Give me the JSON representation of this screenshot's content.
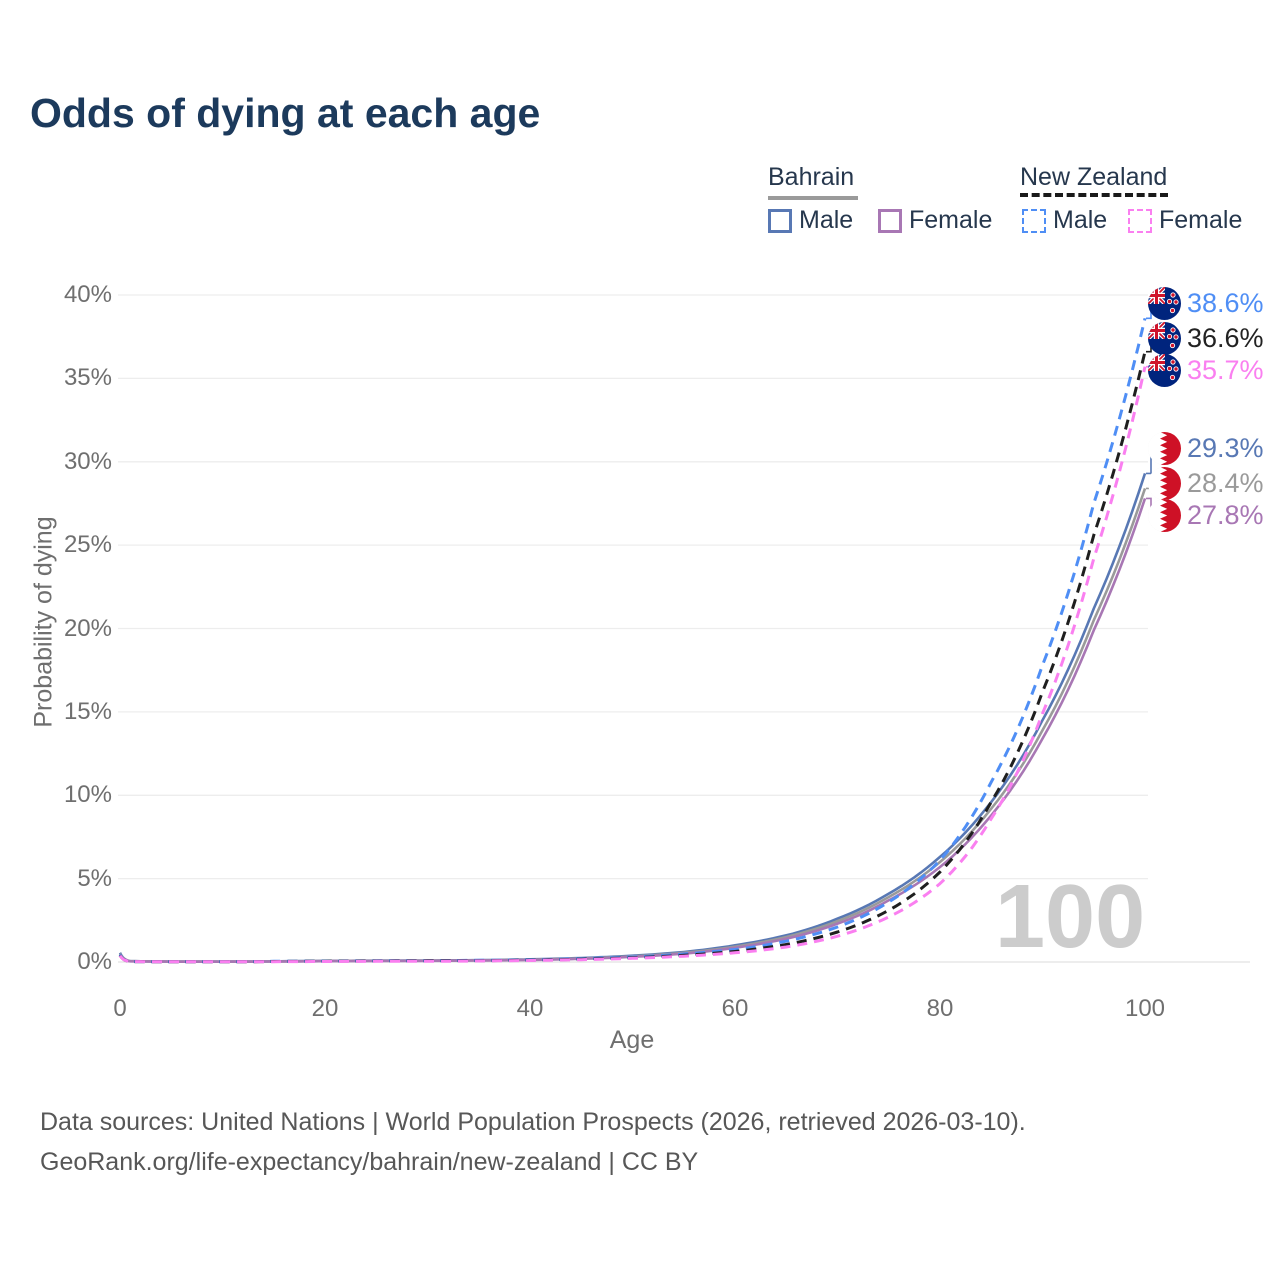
{
  "title": "Odds of dying at each age",
  "watermark_age": "100",
  "legend": {
    "groups": [
      {
        "label": "Bahrain",
        "line_color": "#9a9a9a",
        "line_style": "solid",
        "items": [
          {
            "label": "Male",
            "color": "#5878b4"
          },
          {
            "label": "Female",
            "color": "#a877b4"
          }
        ]
      },
      {
        "label": "New Zealand",
        "line_color": "#1a1a1a",
        "line_style": "dashed",
        "items": [
          {
            "label": "Male",
            "color": "#4f8ef5"
          },
          {
            "label": "Female",
            "color": "#fa7ff0"
          }
        ]
      }
    ]
  },
  "footer": {
    "line1": "Data sources: United Nations | World Population Prospects (2026, retrieved 2026-03-10).",
    "line2": "GeoRank.org/life-expectancy/bahrain/new-zealand | CC BY"
  },
  "chart_data": {
    "type": "line",
    "title": "Odds of dying at each age",
    "xlabel": "Age",
    "ylabel": "Probability of dying",
    "xlim": [
      0,
      100
    ],
    "ylim_percent": [
      0,
      40
    ],
    "grid": "horizontal",
    "legend_position": "top-right",
    "xticks": [
      0,
      20,
      40,
      60,
      80,
      100
    ],
    "yticks": [
      "0%",
      "5%",
      "10%",
      "15%",
      "20%",
      "25%",
      "30%",
      "35%",
      "40%"
    ],
    "x_ages": [
      0,
      1,
      5,
      10,
      15,
      20,
      25,
      30,
      35,
      40,
      45,
      50,
      55,
      60,
      65,
      70,
      75,
      80,
      85,
      90,
      95,
      100
    ],
    "series": [
      {
        "id": "bahrain-male",
        "name": "Bahrain Male",
        "country": "Bahrain",
        "sex": "male",
        "dashed": false,
        "color": "#5878b4",
        "values": [
          0.55,
          0.05,
          0.03,
          0.02,
          0.04,
          0.07,
          0.08,
          0.09,
          0.11,
          0.16,
          0.24,
          0.38,
          0.6,
          1.0,
          1.6,
          2.6,
          4.1,
          6.3,
          9.6,
          14.5,
          21.2,
          29.3
        ]
      },
      {
        "id": "bahrain-total",
        "name": "Bahrain (both sexes)",
        "country": "Bahrain",
        "sex": "total",
        "dashed": false,
        "color": "#9a9a9a",
        "values": [
          0.5,
          0.05,
          0.03,
          0.02,
          0.03,
          0.06,
          0.07,
          0.08,
          0.1,
          0.14,
          0.21,
          0.34,
          0.55,
          0.92,
          1.5,
          2.45,
          3.9,
          6.0,
          9.2,
          13.9,
          20.5,
          28.4
        ]
      },
      {
        "id": "bahrain-female",
        "name": "Bahrain Female",
        "country": "Bahrain",
        "sex": "female",
        "dashed": false,
        "color": "#a877b4",
        "values": [
          0.45,
          0.04,
          0.02,
          0.02,
          0.03,
          0.05,
          0.06,
          0.07,
          0.09,
          0.12,
          0.19,
          0.31,
          0.5,
          0.85,
          1.4,
          2.3,
          3.7,
          5.7,
          8.8,
          13.4,
          19.9,
          27.8
        ]
      },
      {
        "id": "new-zealand-male",
        "name": "New Zealand Male",
        "country": "New Zealand",
        "sex": "male",
        "dashed": true,
        "color": "#4f8ef5",
        "values": [
          0.45,
          0.03,
          0.01,
          0.01,
          0.04,
          0.06,
          0.07,
          0.08,
          0.1,
          0.13,
          0.2,
          0.3,
          0.48,
          0.75,
          1.25,
          2.1,
          3.6,
          6.1,
          10.8,
          17.8,
          27.5,
          38.6
        ]
      },
      {
        "id": "new-zealand-total",
        "name": "New Zealand (both sexes)",
        "country": "New Zealand",
        "sex": "total",
        "dashed": true,
        "color": "#1f1f1f",
        "values": [
          0.4,
          0.03,
          0.01,
          0.01,
          0.03,
          0.05,
          0.06,
          0.07,
          0.08,
          0.11,
          0.17,
          0.25,
          0.4,
          0.63,
          1.05,
          1.8,
          3.1,
          5.4,
          9.6,
          16.2,
          25.6,
          36.6
        ]
      },
      {
        "id": "new-zealand-female",
        "name": "New Zealand Female",
        "country": "New Zealand",
        "sex": "female",
        "dashed": true,
        "color": "#fa7ff0",
        "values": [
          0.38,
          0.03,
          0.01,
          0.01,
          0.02,
          0.03,
          0.04,
          0.04,
          0.06,
          0.09,
          0.14,
          0.22,
          0.35,
          0.55,
          0.9,
          1.55,
          2.7,
          4.7,
          8.6,
          14.9,
          24.2,
          35.7
        ]
      }
    ],
    "end_labels": [
      {
        "value": "38.6%",
        "color": "#4f8ef5",
        "series": 3,
        "flag": "new-zealand-flag-icon"
      },
      {
        "value": "36.6%",
        "color": "#222222",
        "series": 4,
        "flag": "new-zealand-flag-icon"
      },
      {
        "value": "35.7%",
        "color": "#fa7ff0",
        "series": 5,
        "flag": "new-zealand-flag-icon"
      },
      {
        "value": "29.3%",
        "color": "#5878b4",
        "series": 0,
        "flag": "bahrain-flag-icon"
      },
      {
        "value": "28.4%",
        "color": "#9a9a9a",
        "series": 1,
        "flag": "bahrain-flag-icon"
      },
      {
        "value": "27.8%",
        "color": "#a877b4",
        "series": 2,
        "flag": "bahrain-flag-icon"
      }
    ]
  }
}
